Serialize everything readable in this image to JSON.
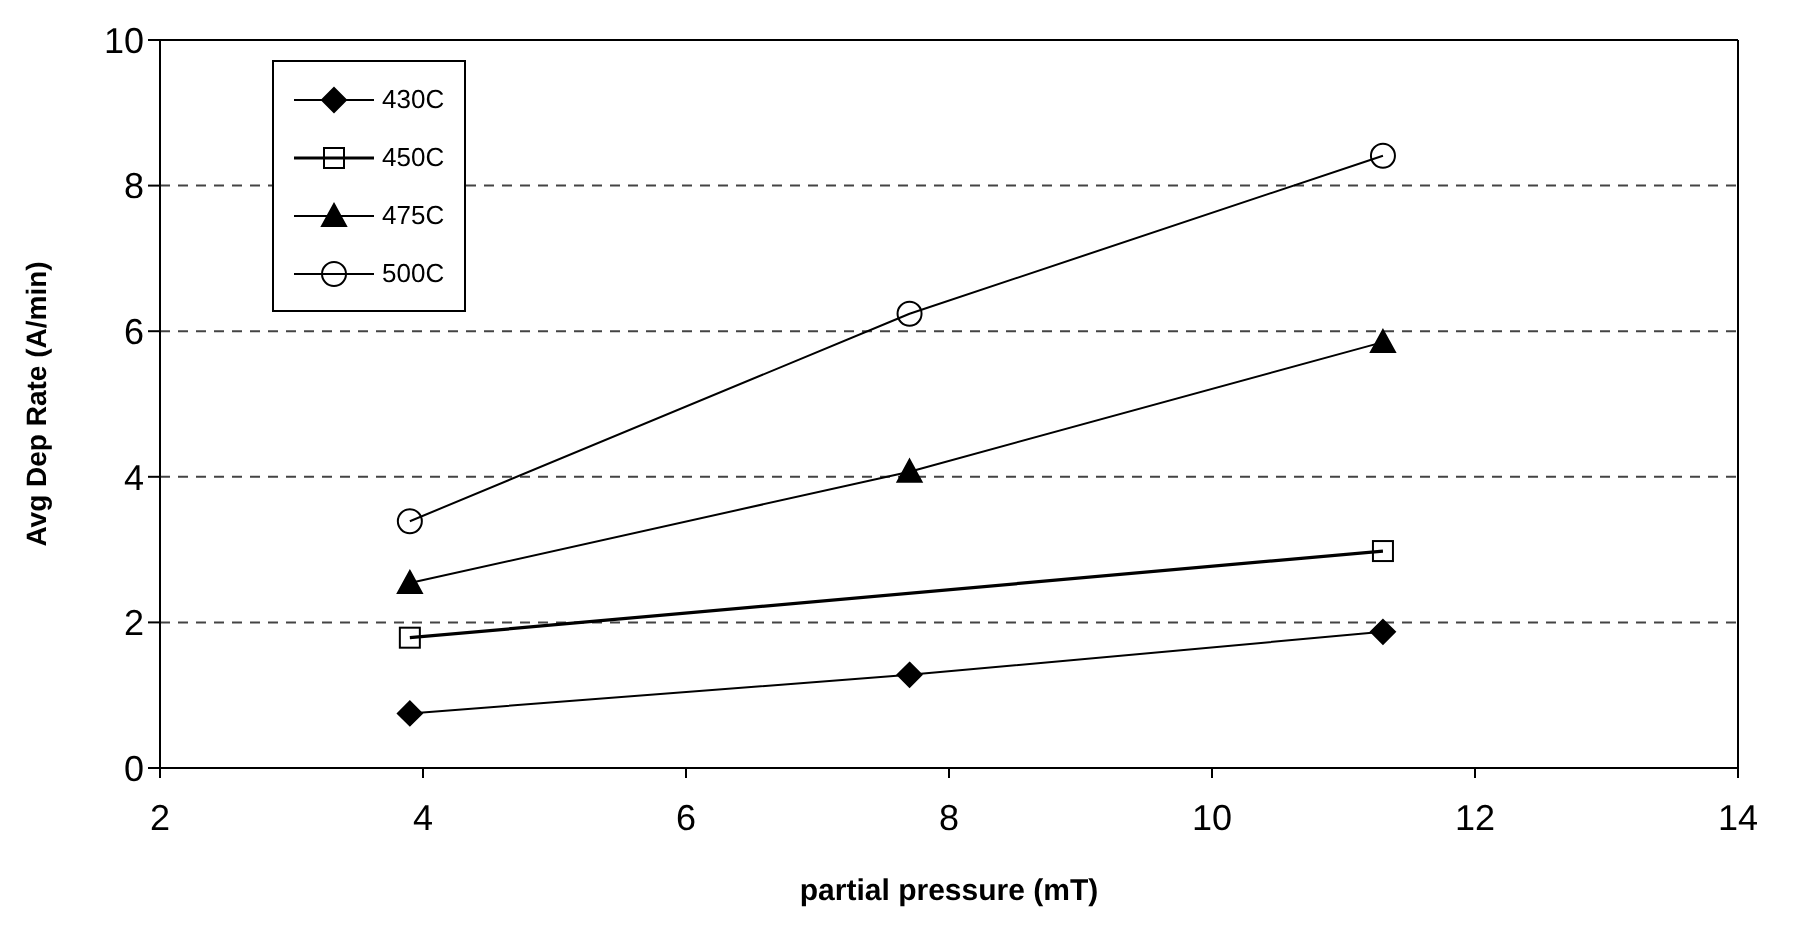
{
  "chart_data": {
    "type": "line",
    "xlabel": "partial pressure (mT)",
    "ylabel": "Avg Dep Rate (A/min)",
    "xlim": [
      2,
      14
    ],
    "xticks": [
      2,
      4,
      6,
      8,
      10,
      12,
      14
    ],
    "ylim": [
      0,
      10
    ],
    "yticks": [
      0,
      2,
      4,
      6,
      8,
      10
    ],
    "grid": "y",
    "legend": "top left",
    "x": [
      3.9,
      7.7,
      11.3
    ],
    "series": [
      {
        "name": "430C",
        "color": "#000000",
        "marker": "diamond",
        "values": [
          0.75,
          1.28,
          1.87
        ]
      },
      {
        "name": "450C",
        "color": "#000000",
        "marker": "square",
        "x": [
          3.9,
          11.3
        ],
        "values": [
          1.79,
          2.98
        ]
      },
      {
        "name": "475C",
        "color": "#000000",
        "marker": "triangle",
        "values": [
          2.54,
          4.07,
          5.85
        ]
      },
      {
        "name": "500C",
        "color": "#000000",
        "marker": "circle",
        "values": [
          3.39,
          6.24,
          8.41
        ]
      }
    ]
  }
}
